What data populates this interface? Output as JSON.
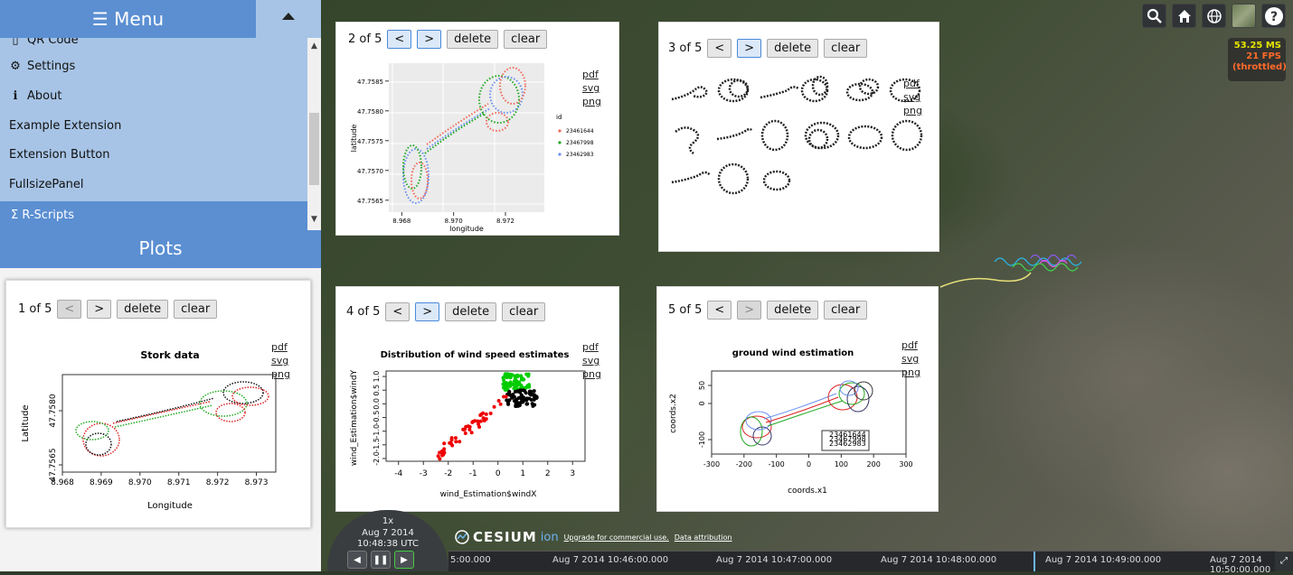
{
  "menu": {
    "title": "☰ Menu",
    "items": [
      {
        "icon": "phone-icon",
        "glyph": "▯",
        "label": "QR Code"
      },
      {
        "icon": "gear-icon",
        "glyph": "⚙",
        "label": "Settings"
      },
      {
        "icon": "info-icon",
        "glyph": "ℹ",
        "label": "About"
      },
      {
        "icon": "",
        "glyph": "",
        "label": "Example Extension"
      },
      {
        "icon": "",
        "glyph": "",
        "label": "Extension Button"
      },
      {
        "icon": "",
        "glyph": "",
        "label": "FullsizePanel"
      }
    ],
    "active_item": {
      "glyph": "Σ",
      "label": "R-Scripts"
    }
  },
  "plots": {
    "title": "Plots",
    "delete_label": "delete",
    "clear_label": "clear",
    "prev_label": "<",
    "next_label": ">",
    "links": [
      "pdf",
      "svg",
      "png"
    ],
    "panels": [
      {
        "counter": "1 of 5"
      },
      {
        "counter": "2 of 5"
      },
      {
        "counter": "3 of 5"
      },
      {
        "counter": "4 of 5"
      },
      {
        "counter": "5 of 5"
      }
    ]
  },
  "perf": {
    "ms": "53.25 MS",
    "fps": "21 FPS",
    "note": "(throttled)"
  },
  "animation": {
    "speed": "1x",
    "date": "Aug 7 2014",
    "time": "10:48:38 UTC"
  },
  "credits": {
    "brand": "CESIUM",
    "ion": "ion",
    "commercial": "Upgrade for commercial use.",
    "attribution": "Data attribution"
  },
  "timeline": {
    "labels": [
      "5:00.000",
      "Aug 7 2014 10:46:00.000",
      "Aug 7 2014 10:47:00.000",
      "Aug 7 2014 10:48:00.000",
      "Aug 7 2014 10:49:00.000",
      "Aug 7 2014 10:50:00.000"
    ]
  },
  "chart_data": [
    {
      "type": "scatter",
      "title": "Stork data",
      "xlabel": "Longitude",
      "ylabel": "Latitude",
      "x_ticks": [
        "8.968",
        "8.969",
        "8.970",
        "8.971",
        "8.972",
        "8.973"
      ],
      "y_ticks": [
        "47.7565",
        "47.7580"
      ],
      "xlim": [
        8.968,
        8.9735
      ],
      "ylim": [
        47.7563,
        47.759
      ]
    },
    {
      "type": "scatter",
      "xlabel": "longitude",
      "ylabel": "latitude",
      "x_ticks": [
        "8.968",
        "8.970",
        "8.972"
      ],
      "y_ticks": [
        "47.7585",
        "47.7580",
        "47.7575",
        "47.7570",
        "47.7565"
      ],
      "legend_title": "id",
      "series": [
        {
          "name": "23461644",
          "color": "#f0695a"
        },
        {
          "name": "23467998",
          "color": "#1fa81f"
        },
        {
          "name": "23462983",
          "color": "#6a8ff0"
        }
      ],
      "xlim": [
        8.9675,
        8.9735
      ],
      "ylim": [
        47.7563,
        47.7588
      ]
    },
    {
      "type": "scatter",
      "title": "Distribution of wind speed estimates",
      "xlabel": "wind_Estimation$windX",
      "ylabel": "wind_Estimation$windY",
      "x_ticks": [
        "-4",
        "-3",
        "-2",
        "-1",
        "0",
        "1",
        "2",
        "3"
      ],
      "y_ticks": [
        "-2.0",
        "-1.5",
        "-1.0",
        "-0.5",
        "0.0",
        "0.5",
        "1.0"
      ],
      "xlim": [
        -4.5,
        3.5
      ],
      "ylim": [
        -2.1,
        1.2
      ]
    },
    {
      "type": "line",
      "title": "ground wind estimation",
      "xlabel": "coords.x1",
      "ylabel": "coords.x2",
      "x_ticks": [
        "-300",
        "-200",
        "-100",
        "0",
        "100",
        "200",
        "300"
      ],
      "y_ticks": [
        "50",
        "0",
        "-100"
      ],
      "legend_entries": [
        "23461644",
        "23467998",
        "23462983"
      ],
      "xlim": [
        -300,
        300
      ],
      "ylim": [
        -140,
        90
      ]
    }
  ]
}
